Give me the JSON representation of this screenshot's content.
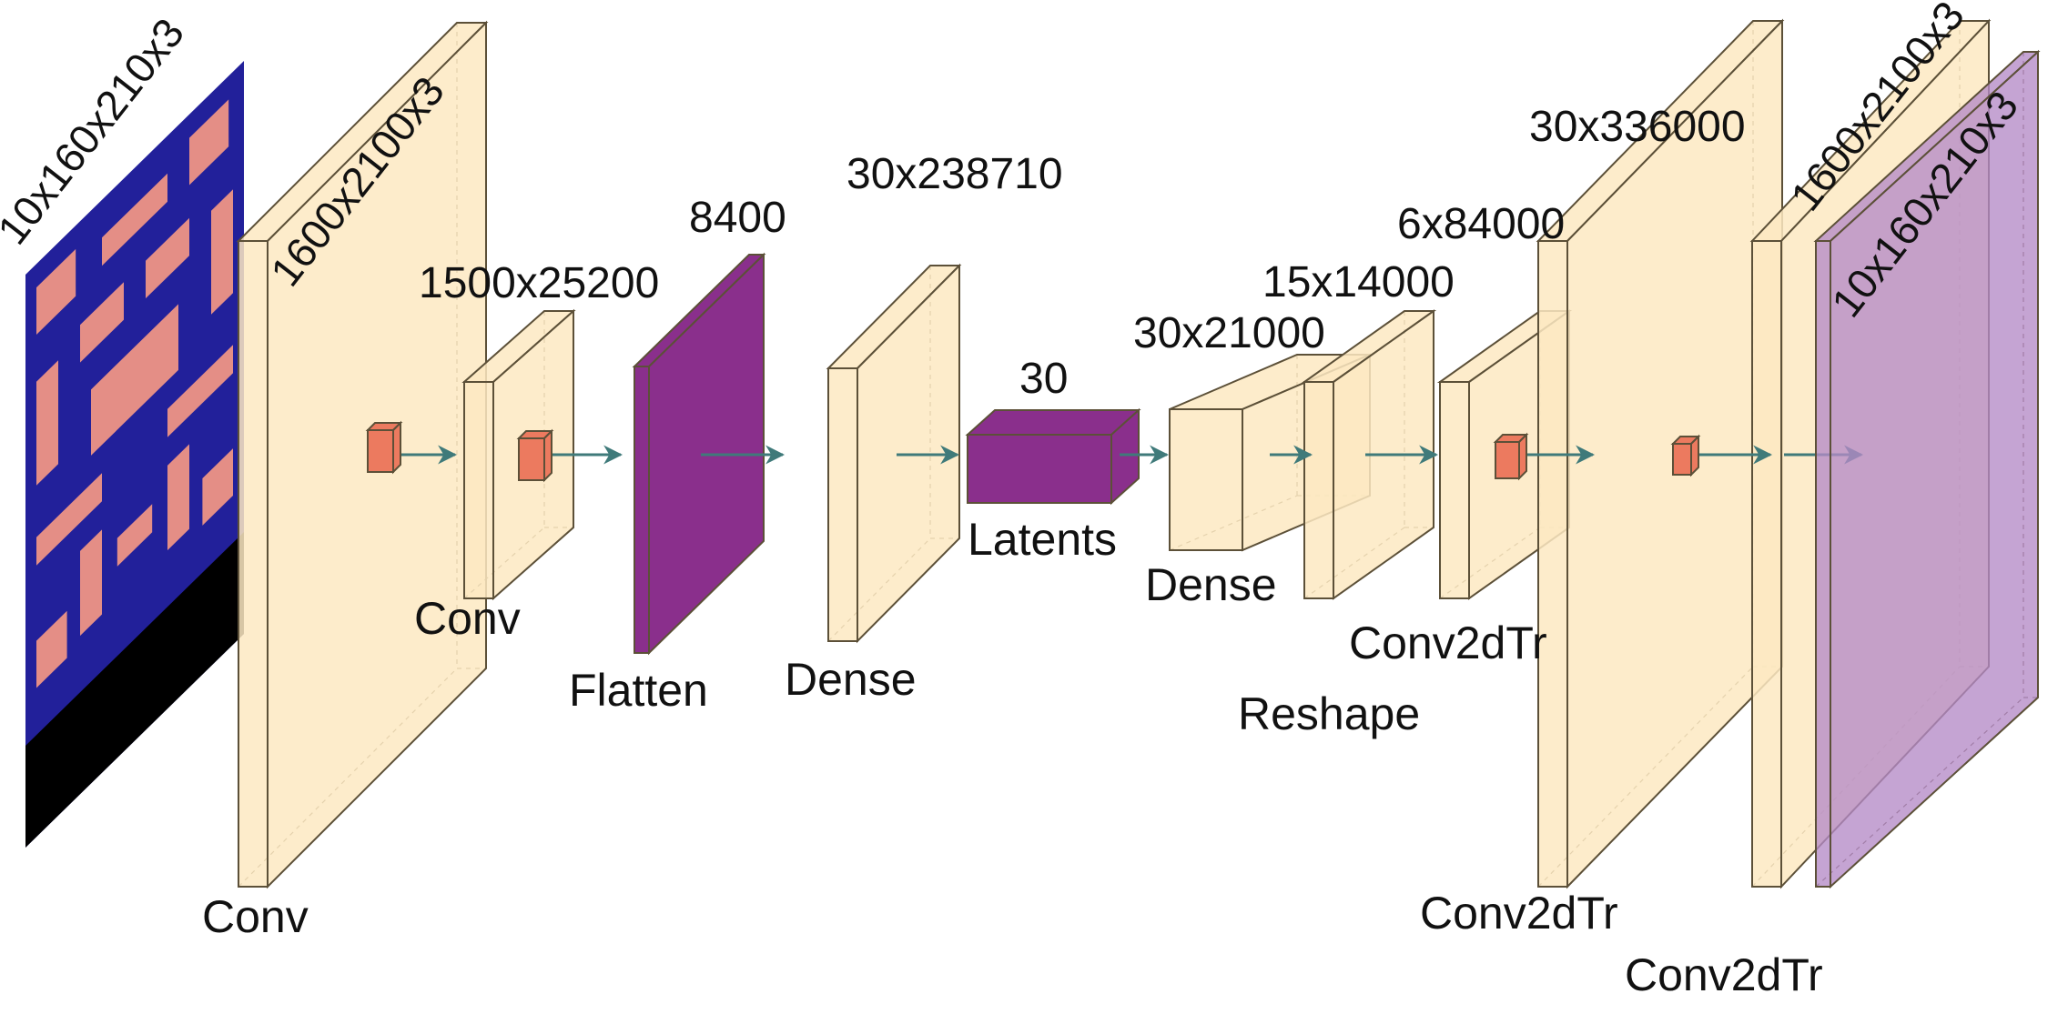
{
  "colors": {
    "layer_fill": "#fde9c2",
    "layer_stroke": "#5c5038",
    "latent_fill": "#8a2f8c",
    "output_fill": "#b58ac6",
    "kernel_fill": "#ec7a5f",
    "arrow": "#3f7a7a",
    "game_bg": "#22209a",
    "game_wall": "#e48e86"
  },
  "input": {
    "dim": "10x160x210x3"
  },
  "layers": [
    {
      "id": "conv1",
      "dim": "1600x2100x3",
      "op": "Conv"
    },
    {
      "id": "conv2",
      "dim": "1500x25200",
      "op": "Conv"
    },
    {
      "id": "flatten",
      "dim": "8400",
      "op": "Flatten"
    },
    {
      "id": "dense1",
      "dim": "30x238710",
      "op": "Dense"
    },
    {
      "id": "latents",
      "dim": "30",
      "op": "Latents"
    },
    {
      "id": "dense2",
      "dim": "30x21000",
      "op": "Dense"
    },
    {
      "id": "reshape",
      "dim": "15x14000",
      "op": "Reshape"
    },
    {
      "id": "convtr1",
      "dim": "6x84000",
      "op": "Conv2dTr"
    },
    {
      "id": "convtr2",
      "dim": "30x336000",
      "op": "Conv2dTr"
    },
    {
      "id": "convtr3",
      "dim": "1600x2100x3",
      "op": "Conv2dTr"
    }
  ],
  "output": {
    "dim": "10x160x210x3"
  }
}
